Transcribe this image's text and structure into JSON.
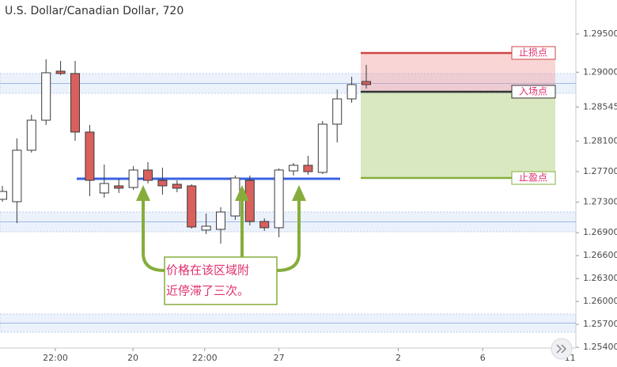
{
  "chart_data": {
    "type": "candlestick",
    "title": "U.S. Dollar/Canadian Dollar, 720",
    "open": [
      1.27337,
      1.27306,
      1.27979,
      1.28372,
      1.29014,
      1.28983,
      1.28217,
      1.2742,
      1.27513,
      1.27492,
      1.2772,
      1.27585,
      1.27534,
      1.27513,
      1.26934,
      1.26944,
      1.27119,
      1.27585,
      1.27047,
      1.26965,
      1.27709,
      1.27782,
      1.27689,
      1.2832,
      1.28651,
      1.28879
    ],
    "high": [
      1.27513,
      1.28134,
      1.28444,
      1.29169,
      1.29148,
      1.29148,
      1.2831,
      1.27792,
      1.27606,
      1.27772,
      1.27823,
      1.27751,
      1.27585,
      1.27534,
      1.27151,
      1.27233,
      1.27648,
      1.27648,
      1.27088,
      1.27741,
      1.27813,
      1.27906,
      1.28361,
      1.28776,
      1.28941,
      1.29096
    ],
    "low": [
      1.27306,
      1.27026,
      1.27948,
      1.2831,
      1.28962,
      1.28103,
      1.27378,
      1.27358,
      1.2742,
      1.27461,
      1.27544,
      1.27399,
      1.2743,
      1.26954,
      1.26882,
      1.26757,
      1.27068,
      1.26995,
      1.26923,
      1.2684,
      1.27648,
      1.27658,
      1.27668,
      1.28082,
      1.286,
      1.28786
    ],
    "close": [
      1.2744,
      1.27979,
      1.28372,
      1.28993,
      1.28983,
      1.28217,
      1.27585,
      1.27544,
      1.27482,
      1.2772,
      1.27585,
      1.27513,
      1.27482,
      1.26975,
      1.26985,
      1.27171,
      1.27616,
      1.27047,
      1.26965,
      1.2772,
      1.27782,
      1.27699,
      1.2832,
      1.28651,
      1.28838,
      1.28838
    ],
    "up_color": "#ffffff",
    "down_color": "#d9605d",
    "outline_color": "#3a3a3a",
    "ylim": [
      1.25391,
      1.29945
    ],
    "yticks": [
      {
        "value": 1.295,
        "label": "1.29500"
      },
      {
        "value": 1.29,
        "label": "1.29000"
      },
      {
        "value": 1.28545,
        "label": "1.28545"
      },
      {
        "value": 1.281,
        "label": "1.28100"
      },
      {
        "value": 1.277,
        "label": "1.27700"
      },
      {
        "value": 1.273,
        "label": "1.27300"
      },
      {
        "value": 1.269,
        "label": "1.26900"
      },
      {
        "value": 1.266,
        "label": "1.26600"
      },
      {
        "value": 1.263,
        "label": "1.26300"
      },
      {
        "value": 1.26,
        "label": "1.26000"
      },
      {
        "value": 1.257,
        "label": "1.25700"
      },
      {
        "value": 1.254,
        "label": "1.25400"
      }
    ],
    "xlim": [
      -0.163,
      39.4
    ],
    "xticks": [
      {
        "value": 3.64,
        "label": "22:00"
      },
      {
        "value": 8.97,
        "label": "20"
      },
      {
        "value": 13.9,
        "label": "22:00"
      },
      {
        "value": 19.0,
        "label": "27"
      },
      {
        "value": 27.2,
        "label": "2"
      },
      {
        "value": 33.0,
        "label": "6"
      },
      {
        "value": 39.0,
        "label": "11"
      }
    ],
    "zones": [
      [
        1.28983,
        1.28724
      ],
      [
        1.27171,
        1.26913
      ],
      [
        1.25836,
        1.25598
      ]
    ],
    "support_line": 1.27606,
    "position": {
      "stop": 1.29252,
      "entry": 1.28745,
      "target": 1.27616,
      "stop_label": "止损点",
      "entry_label": "入场点",
      "target_label": "止盈点"
    },
    "annotation": [
      "价格在该区域附",
      "近停滞了三次。"
    ]
  }
}
